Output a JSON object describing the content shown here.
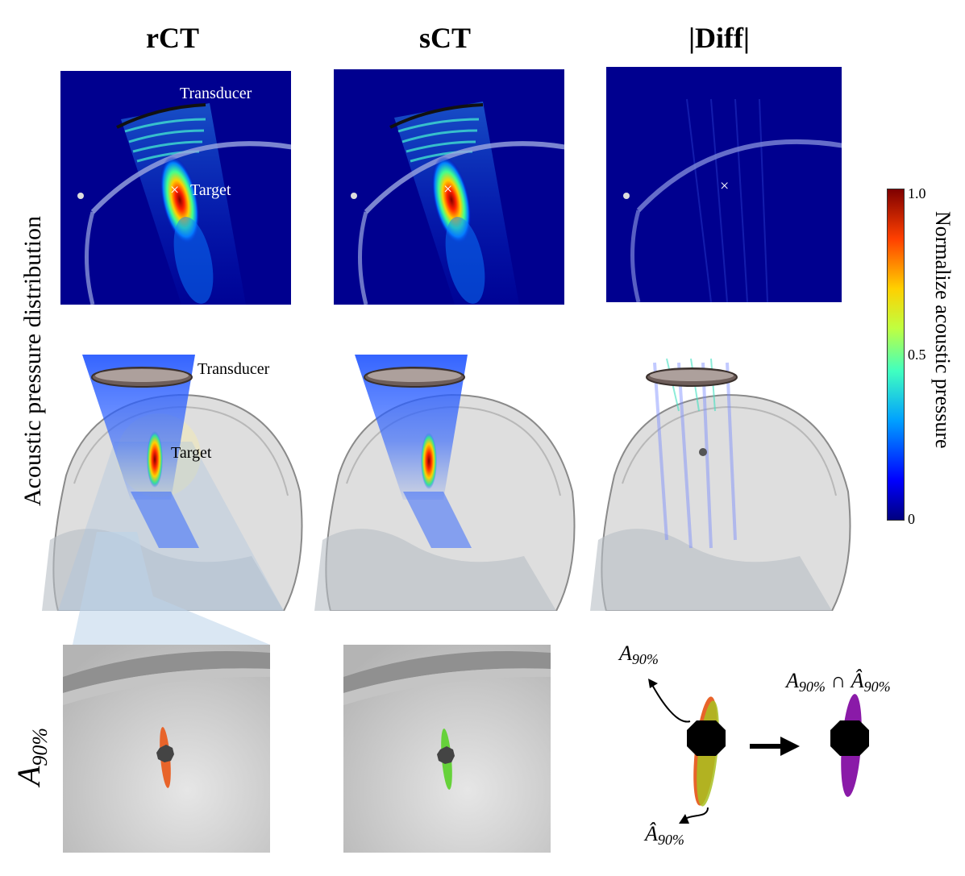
{
  "columns": {
    "rct": "rCT",
    "sct": "sCT",
    "diff": "|Diff|"
  },
  "row_labels": {
    "acoustic": "Acoustic pressure distribution",
    "a90_main": "A",
    "a90_sub": "90%"
  },
  "annotations": {
    "transducer": "Transducer",
    "target": "Target",
    "target_marker": "×"
  },
  "colorbar": {
    "label": "Normalize acoustic pressure",
    "tick_max": "1.0",
    "tick_mid": "0.5",
    "tick_min": "0",
    "colors": [
      "#00007f",
      "#0000ff",
      "#00ffff",
      "#7fff7f",
      "#ffff00",
      "#ff0000",
      "#7f0000"
    ]
  },
  "legend_math": {
    "a90_main": "A",
    "a90_sub": "90%",
    "a90hat_main": "Â",
    "a90hat_sub": "90%",
    "intersect": "∩",
    "arrow": "→"
  },
  "colors": {
    "field_bg": "#00008f",
    "rct_focus": "#e8642a",
    "sct_focus": "#66d23a",
    "intersection": "#8a1aa8"
  }
}
